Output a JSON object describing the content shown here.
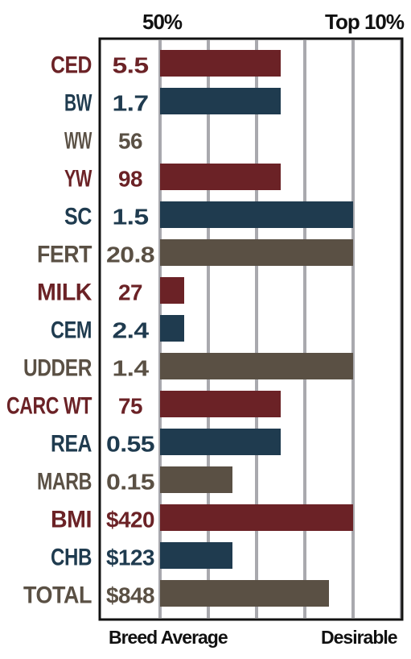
{
  "header": {
    "left_label": "50%",
    "right_label": "Top 10%"
  },
  "footer": {
    "left_label": "Breed Average",
    "right_label": "Desirable"
  },
  "colors": {
    "red": "#6b2226",
    "blue": "#1f3b4f",
    "brown": "#5a5044",
    "grid": "#a9a9ae",
    "frame": "#111111"
  },
  "chart_data": {
    "type": "bar",
    "orientation": "horizontal",
    "xlim": [
      0,
      5
    ],
    "grid": true,
    "categories": [
      "CED",
      "BW",
      "WW",
      "YW",
      "SC",
      "FERT",
      "MILK",
      "CEM",
      "UDDER",
      "CARC WT",
      "REA",
      "MARB",
      "BMI",
      "CHB",
      "TOTAL"
    ],
    "values_printed": [
      "5.5",
      "1.7",
      "56",
      "98",
      "1.5",
      "20.8",
      "27",
      "2.4",
      "1.4",
      "75",
      "0.55",
      "0.15",
      "$420",
      "$123",
      "$848"
    ],
    "values": [
      2.5,
      2.5,
      0,
      2.5,
      4,
      4,
      0.5,
      0.5,
      4,
      2.5,
      2.5,
      1.5,
      4,
      1.5,
      3.5
    ],
    "colors": [
      "red",
      "blue",
      "brown",
      "red",
      "blue",
      "brown",
      "red",
      "blue",
      "brown",
      "red",
      "blue",
      "brown",
      "red",
      "blue",
      "brown"
    ]
  }
}
